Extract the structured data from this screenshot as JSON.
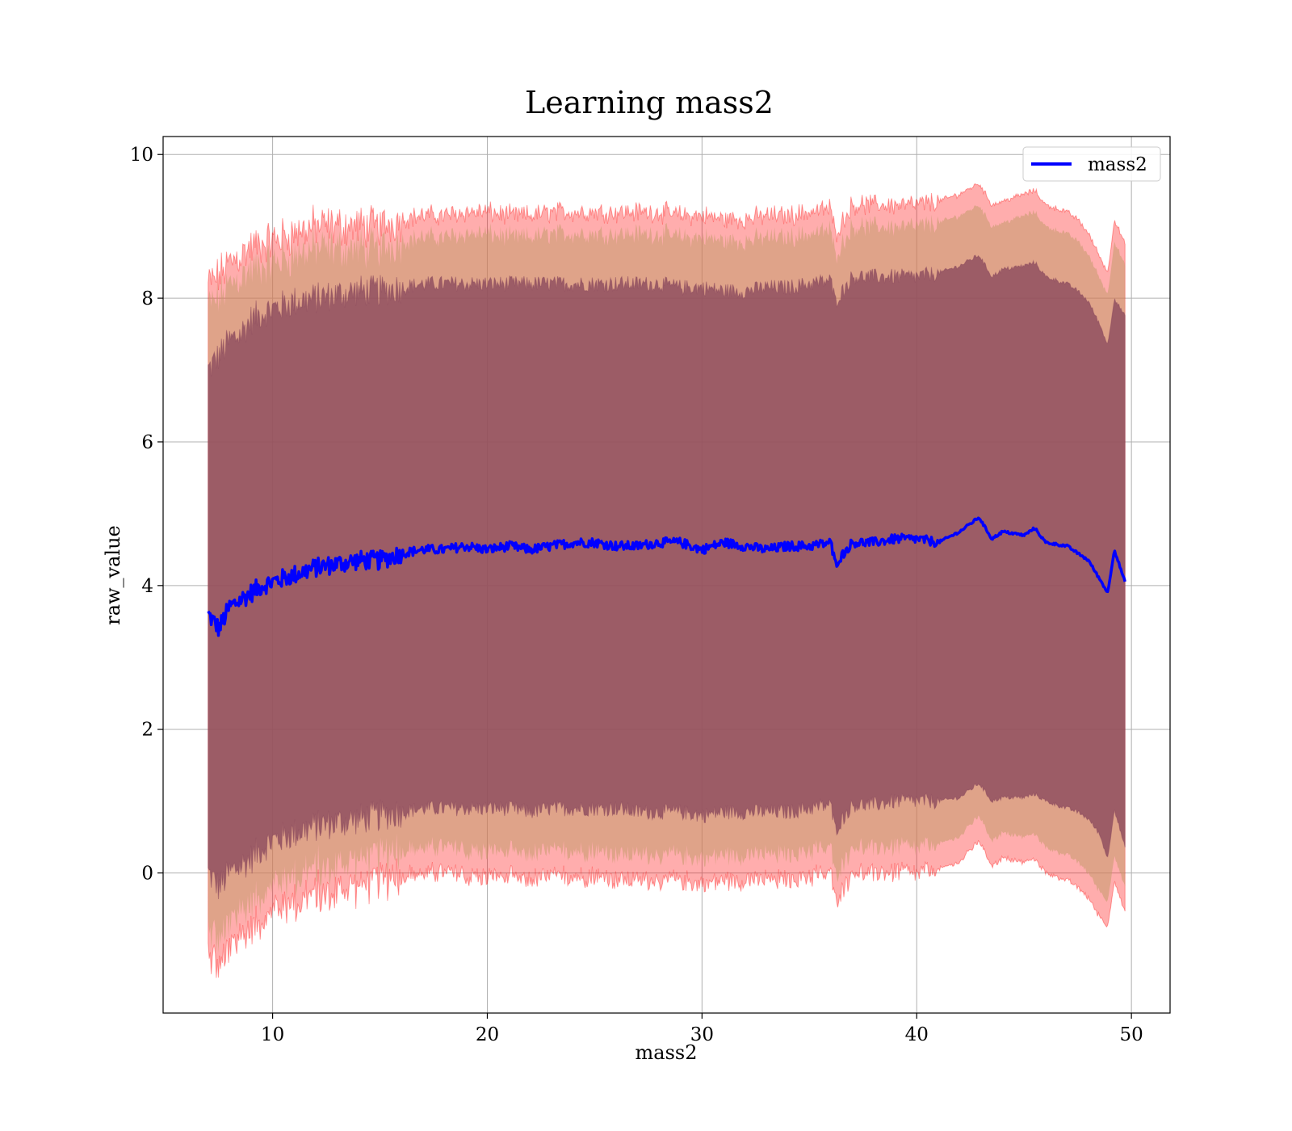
{
  "chart_data": {
    "type": "line",
    "title": "Learning mass2",
    "xlabel": "mass2",
    "ylabel": "raw_value",
    "xlim": [
      4.9,
      51.8
    ],
    "ylim": [
      -1.95,
      10.25
    ],
    "xticks": [
      10,
      20,
      30,
      40,
      50
    ],
    "yticks": [
      0,
      2,
      4,
      6,
      8,
      10
    ],
    "x_tick_labels": [
      "10",
      "20",
      "30",
      "40",
      "50"
    ],
    "y_tick_labels": [
      "0",
      "2",
      "4",
      "6",
      "8",
      "10"
    ],
    "grid": true,
    "legend": {
      "position": "top-right",
      "entries": [
        "mass2"
      ]
    },
    "colors": {
      "line": "#0000ff",
      "outer_band": "#ff0000",
      "middle_band": "#c49a6c",
      "inner_band": "#8b4a5e",
      "grid": "#b0b0b0"
    },
    "series": [
      {
        "name": "mass2",
        "x": [
          7.0,
          7.5,
          8.0,
          8.5,
          9.0,
          9.5,
          10,
          11,
          12,
          13,
          14,
          15,
          16,
          17,
          18,
          19,
          20,
          21,
          22,
          23,
          24,
          25,
          26,
          27,
          28,
          29,
          30,
          31,
          32,
          33,
          34,
          35,
          36,
          36.2,
          37,
          38,
          39,
          40,
          41,
          42,
          42.9,
          43.5,
          44,
          45,
          45.5,
          46,
          47,
          47.5,
          48,
          48.5,
          48.9,
          49.2,
          49.7
        ],
        "y": [
          3.6,
          3.4,
          3.7,
          3.8,
          3.9,
          4.0,
          4.05,
          4.15,
          4.25,
          4.3,
          4.35,
          4.35,
          4.45,
          4.5,
          4.5,
          4.55,
          4.5,
          4.55,
          4.5,
          4.55,
          4.6,
          4.6,
          4.55,
          4.55,
          4.6,
          4.6,
          4.5,
          4.6,
          4.55,
          4.5,
          4.55,
          4.55,
          4.6,
          4.3,
          4.6,
          4.6,
          4.65,
          4.65,
          4.6,
          4.75,
          4.95,
          4.65,
          4.75,
          4.7,
          4.8,
          4.6,
          4.55,
          4.45,
          4.35,
          4.1,
          3.9,
          4.5,
          4.05
        ],
        "outer_upper": [
          8.2,
          8.3,
          8.5,
          8.6,
          8.7,
          8.75,
          8.8,
          8.9,
          9.0,
          9.0,
          9.0,
          9.0,
          9.1,
          9.15,
          9.15,
          9.2,
          9.2,
          9.15,
          9.15,
          9.2,
          9.2,
          9.2,
          9.2,
          9.2,
          9.2,
          9.15,
          9.15,
          9.1,
          9.1,
          9.15,
          9.15,
          9.2,
          9.25,
          8.9,
          9.3,
          9.3,
          9.3,
          9.3,
          9.35,
          9.45,
          9.6,
          9.3,
          9.35,
          9.45,
          9.5,
          9.3,
          9.2,
          9.1,
          8.9,
          8.6,
          8.35,
          9.1,
          8.75
        ],
        "inner_upper": [
          7.0,
          7.2,
          7.4,
          7.5,
          7.7,
          7.8,
          7.85,
          7.95,
          8.0,
          8.05,
          8.1,
          8.1,
          8.15,
          8.2,
          8.2,
          8.2,
          8.2,
          8.2,
          8.2,
          8.2,
          8.2,
          8.2,
          8.2,
          8.2,
          8.2,
          8.15,
          8.15,
          8.1,
          8.1,
          8.15,
          8.15,
          8.2,
          8.25,
          7.95,
          8.3,
          8.3,
          8.3,
          8.3,
          8.35,
          8.45,
          8.6,
          8.3,
          8.4,
          8.45,
          8.5,
          8.3,
          8.2,
          8.1,
          7.95,
          7.65,
          7.35,
          8.0,
          7.75
        ],
        "inner_lower": [
          0.0,
          -0.2,
          0.0,
          0.1,
          0.2,
          0.35,
          0.45,
          0.55,
          0.65,
          0.7,
          0.75,
          0.8,
          0.85,
          0.9,
          0.9,
          0.9,
          0.9,
          0.9,
          0.85,
          0.9,
          0.9,
          0.9,
          0.9,
          0.85,
          0.85,
          0.85,
          0.8,
          0.85,
          0.85,
          0.85,
          0.85,
          0.9,
          0.95,
          0.6,
          0.95,
          0.95,
          1.0,
          1.0,
          1.0,
          1.05,
          1.25,
          1.0,
          1.05,
          1.05,
          1.1,
          1.0,
          0.9,
          0.85,
          0.75,
          0.55,
          0.2,
          0.9,
          0.35
        ],
        "outer_lower": [
          -1.1,
          -1.3,
          -1.1,
          -0.9,
          -0.75,
          -0.6,
          -0.5,
          -0.4,
          -0.3,
          -0.25,
          -0.15,
          -0.1,
          -0.05,
          0.0,
          0.0,
          -0.05,
          -0.05,
          -0.05,
          -0.1,
          -0.05,
          -0.05,
          -0.05,
          -0.1,
          -0.1,
          -0.1,
          -0.1,
          -0.15,
          -0.1,
          -0.1,
          -0.1,
          -0.1,
          -0.05,
          0.0,
          -0.4,
          0.0,
          0.0,
          0.0,
          0.0,
          0.05,
          0.15,
          0.45,
          0.1,
          0.2,
          0.15,
          0.2,
          0.0,
          -0.1,
          -0.2,
          -0.35,
          -0.6,
          -0.75,
          -0.1,
          -0.55
        ]
      }
    ]
  }
}
